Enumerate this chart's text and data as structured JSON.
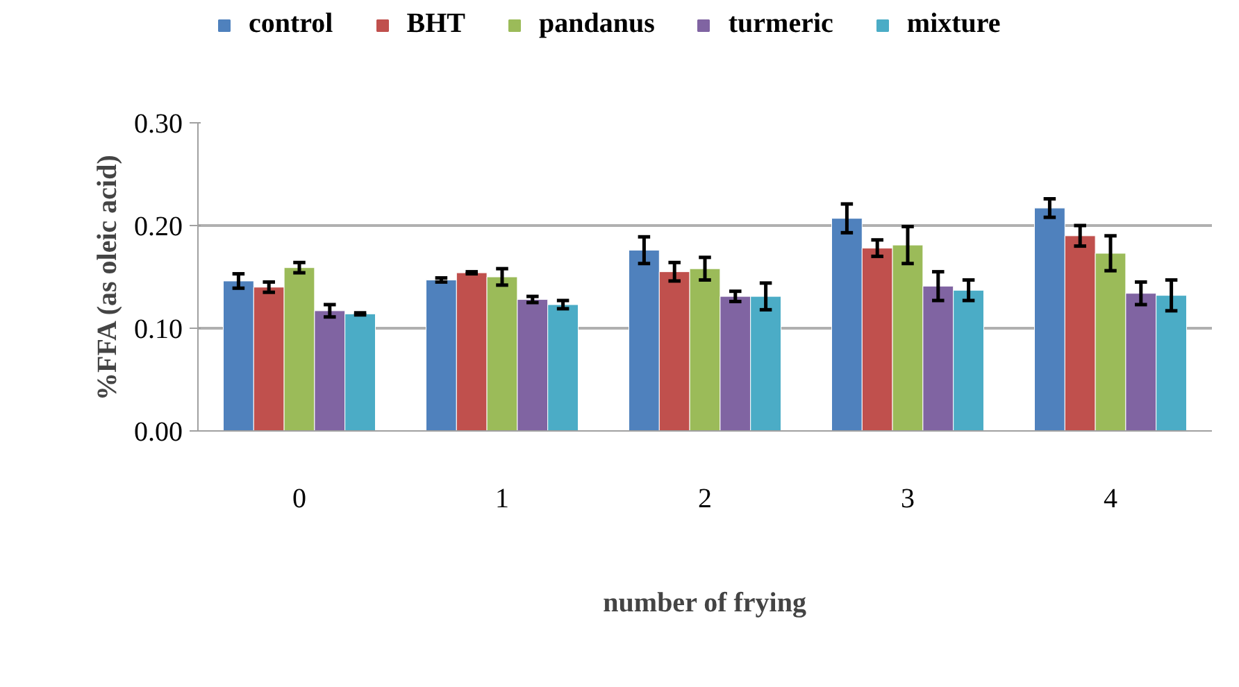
{
  "chart_data": {
    "type": "bar",
    "xlabel": "number of frying",
    "ylabel": "%FFA (as oleic acid)",
    "categories": [
      "0",
      "1",
      "2",
      "3",
      "4"
    ],
    "series": [
      {
        "name": "control",
        "color": "#4f81bd",
        "values": [
          0.146,
          0.147,
          0.176,
          0.207,
          0.217
        ],
        "errors": [
          0.007,
          0.002,
          0.013,
          0.014,
          0.009
        ]
      },
      {
        "name": "BHT",
        "color": "#c0504d",
        "values": [
          0.14,
          0.154,
          0.155,
          0.178,
          0.19
        ],
        "errors": [
          0.005,
          0.001,
          0.009,
          0.008,
          0.01
        ]
      },
      {
        "name": "pandanus",
        "color": "#9bbb59",
        "values": [
          0.159,
          0.15,
          0.158,
          0.181,
          0.173
        ],
        "errors": [
          0.005,
          0.008,
          0.011,
          0.018,
          0.017
        ]
      },
      {
        "name": "turmeric",
        "color": "#8064a2",
        "values": [
          0.117,
          0.128,
          0.131,
          0.141,
          0.134
        ],
        "errors": [
          0.006,
          0.003,
          0.005,
          0.014,
          0.011
        ]
      },
      {
        "name": "mixture",
        "color": "#4bacc6",
        "values": [
          0.114,
          0.123,
          0.131,
          0.137,
          0.132
        ],
        "errors": [
          0.001,
          0.004,
          0.013,
          0.01,
          0.015
        ]
      }
    ],
    "ylim": [
      0,
      0.3
    ],
    "yticks": [
      {
        "value": 0,
        "label": "0.00"
      },
      {
        "value": 0.1,
        "label": "0.10"
      },
      {
        "value": 0.2,
        "label": "0.20"
      },
      {
        "value": 0.3,
        "label": "0.30"
      }
    ],
    "grid": "y",
    "legend": "top"
  }
}
